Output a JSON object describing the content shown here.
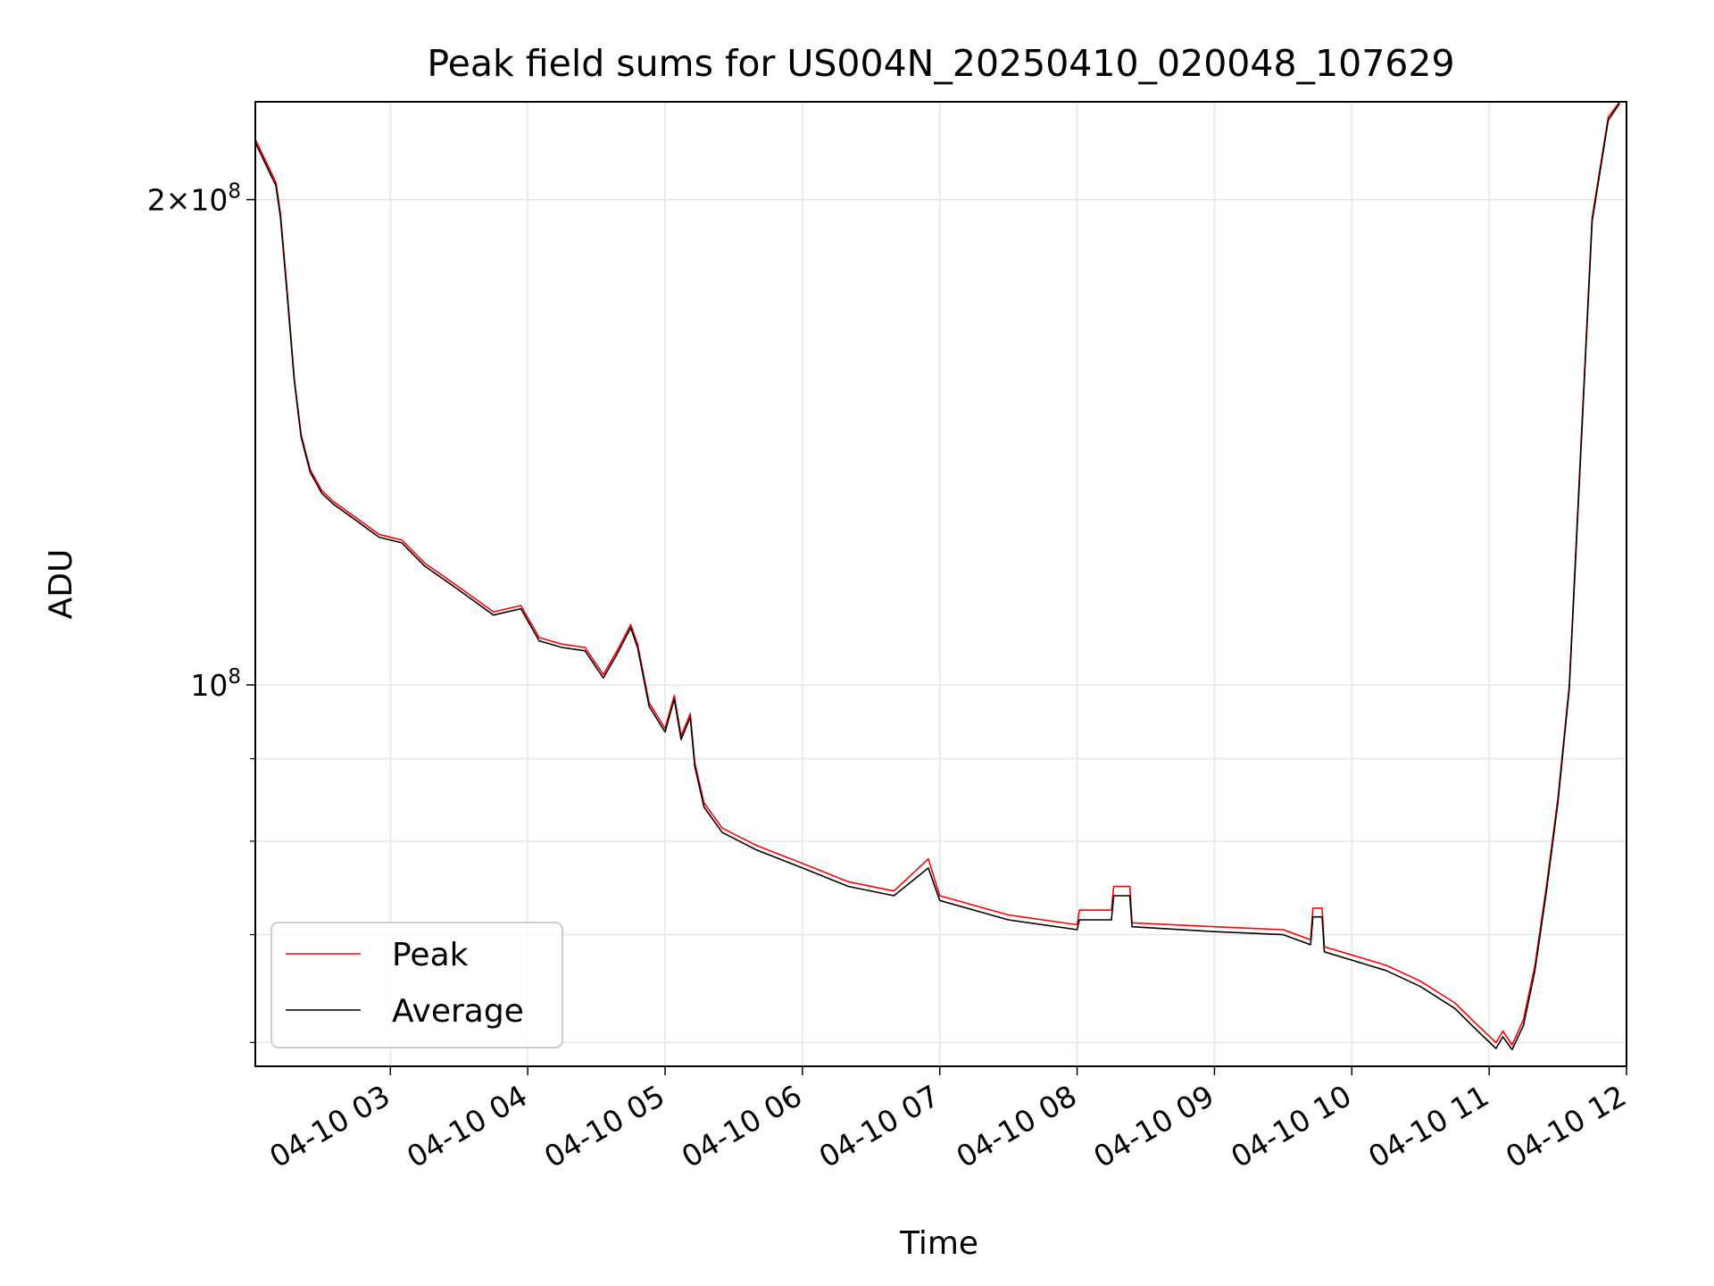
{
  "chart_data": {
    "type": "line",
    "title": "Peak field sums for US004N_20250410_020048_107629",
    "xlabel": "Time",
    "ylabel": "ADU",
    "y_scale": "log",
    "grid": true,
    "legend_position": "lower-left",
    "xlim": [
      "2025-04-10T02:01",
      "2025-04-10T12:00"
    ],
    "ylim": [
      58000000,
      230000000
    ],
    "x_ticks": [
      "04-10 03",
      "04-10 04",
      "04-10 05",
      "04-10 06",
      "04-10 07",
      "04-10 08",
      "04-10 09",
      "04-10 10",
      "04-10 11",
      "04-10 12"
    ],
    "x_tick_times": [
      "2025-04-10T03:00",
      "2025-04-10T04:00",
      "2025-04-10T05:00",
      "2025-04-10T06:00",
      "2025-04-10T07:00",
      "2025-04-10T08:00",
      "2025-04-10T09:00",
      "2025-04-10T10:00",
      "2025-04-10T11:00",
      "2025-04-10T12:00"
    ],
    "y_major_ticks": [
      {
        "value": 200000000,
        "mantissa": "2",
        "exp": "8"
      },
      {
        "value": 100000000,
        "mantissa": "",
        "exp": "8"
      }
    ],
    "y_minor_ticks": [
      60000000,
      70000000,
      80000000,
      90000000
    ],
    "series": [
      {
        "name": "Peak",
        "color": "#ff0000",
        "x": [
          "2025-04-10T02:01",
          "2025-04-10T02:10",
          "2025-04-10T02:12",
          "2025-04-10T02:15",
          "2025-04-10T02:18",
          "2025-04-10T02:21",
          "2025-04-10T02:25",
          "2025-04-10T02:30",
          "2025-04-10T02:35",
          "2025-04-10T02:45",
          "2025-04-10T02:55",
          "2025-04-10T03:05",
          "2025-04-10T03:15",
          "2025-04-10T03:30",
          "2025-04-10T03:45",
          "2025-04-10T03:57",
          "2025-04-10T04:05",
          "2025-04-10T04:15",
          "2025-04-10T04:25",
          "2025-04-10T04:33",
          "2025-04-10T04:39",
          "2025-04-10T04:45",
          "2025-04-10T04:48",
          "2025-04-10T04:53",
          "2025-04-10T05:00",
          "2025-04-10T05:04",
          "2025-04-10T05:07",
          "2025-04-10T05:11",
          "2025-04-10T05:13",
          "2025-04-10T05:17",
          "2025-04-10T05:25",
          "2025-04-10T05:40",
          "2025-04-10T06:00",
          "2025-04-10T06:20",
          "2025-04-10T06:40",
          "2025-04-10T06:55",
          "2025-04-10T07:00",
          "2025-04-10T07:30",
          "2025-04-10T08:00",
          "2025-04-10T08:01",
          "2025-04-10T08:15",
          "2025-04-10T08:16",
          "2025-04-10T08:23",
          "2025-04-10T08:24",
          "2025-04-10T09:00",
          "2025-04-10T09:30",
          "2025-04-10T09:42",
          "2025-04-10T09:43",
          "2025-04-10T09:47",
          "2025-04-10T09:48",
          "2025-04-10T10:00",
          "2025-04-10T10:15",
          "2025-04-10T10:30",
          "2025-04-10T10:45",
          "2025-04-10T10:55",
          "2025-04-10T11:03",
          "2025-04-10T11:06",
          "2025-04-10T11:10",
          "2025-04-10T11:15",
          "2025-04-10T11:20",
          "2025-04-10T11:25",
          "2025-04-10T11:30",
          "2025-04-10T11:35",
          "2025-04-10T11:40",
          "2025-04-10T11:45",
          "2025-04-10T11:52",
          "2025-04-10T11:57"
        ],
        "y": [
          218000000,
          205000000,
          196000000,
          175000000,
          155000000,
          143000000,
          136000000,
          132000000,
          130000000,
          127000000,
          124000000,
          123000000,
          119000000,
          115000000,
          111000000,
          112000000,
          107000000,
          106000000,
          105500000,
          101500000,
          105000000,
          109000000,
          106000000,
          97500000,
          94000000,
          98500000,
          93000000,
          96000000,
          89500000,
          84500000,
          81500000,
          79500000,
          77500000,
          75500000,
          74500000,
          78000000,
          74000000,
          72000000,
          71000000,
          72500000,
          72500000,
          75000000,
          75000000,
          71200000,
          70800000,
          70500000,
          69500000,
          72700000,
          72700000,
          68800000,
          68000000,
          67000000,
          65500000,
          63500000,
          61500000,
          60000000,
          61000000,
          59800000,
          62000000,
          67000000,
          75000000,
          85000000,
          100000000,
          140000000,
          195000000,
          225000000,
          230000000
        ]
      },
      {
        "name": "Average",
        "color": "#000000",
        "x": [
          "2025-04-10T02:01",
          "2025-04-10T02:10",
          "2025-04-10T02:12",
          "2025-04-10T02:15",
          "2025-04-10T02:18",
          "2025-04-10T02:21",
          "2025-04-10T02:25",
          "2025-04-10T02:30",
          "2025-04-10T02:35",
          "2025-04-10T02:45",
          "2025-04-10T02:55",
          "2025-04-10T03:05",
          "2025-04-10T03:15",
          "2025-04-10T03:30",
          "2025-04-10T03:45",
          "2025-04-10T03:57",
          "2025-04-10T04:05",
          "2025-04-10T04:15",
          "2025-04-10T04:25",
          "2025-04-10T04:33",
          "2025-04-10T04:39",
          "2025-04-10T04:45",
          "2025-04-10T04:48",
          "2025-04-10T04:53",
          "2025-04-10T05:00",
          "2025-04-10T05:04",
          "2025-04-10T05:07",
          "2025-04-10T05:11",
          "2025-04-10T05:13",
          "2025-04-10T05:17",
          "2025-04-10T05:25",
          "2025-04-10T05:40",
          "2025-04-10T06:00",
          "2025-04-10T06:20",
          "2025-04-10T06:40",
          "2025-04-10T06:55",
          "2025-04-10T07:00",
          "2025-04-10T07:30",
          "2025-04-10T08:00",
          "2025-04-10T08:01",
          "2025-04-10T08:15",
          "2025-04-10T08:16",
          "2025-04-10T08:23",
          "2025-04-10T08:24",
          "2025-04-10T09:00",
          "2025-04-10T09:30",
          "2025-04-10T09:42",
          "2025-04-10T09:43",
          "2025-04-10T09:47",
          "2025-04-10T09:48",
          "2025-04-10T10:00",
          "2025-04-10T10:15",
          "2025-04-10T10:30",
          "2025-04-10T10:45",
          "2025-04-10T10:55",
          "2025-04-10T11:03",
          "2025-04-10T11:06",
          "2025-04-10T11:10",
          "2025-04-10T11:15",
          "2025-04-10T11:20",
          "2025-04-10T11:25",
          "2025-04-10T11:30",
          "2025-04-10T11:35",
          "2025-04-10T11:40",
          "2025-04-10T11:45",
          "2025-04-10T11:52",
          "2025-04-10T11:57"
        ],
        "y": [
          217000000,
          204000000,
          195000000,
          174000000,
          154500000,
          142500000,
          135500000,
          131500000,
          129500000,
          126500000,
          123500000,
          122500000,
          118500000,
          114500000,
          110500000,
          111500000,
          106500000,
          105500000,
          105000000,
          101000000,
          104500000,
          108500000,
          105500000,
          97000000,
          93500000,
          98000000,
          92500000,
          95500000,
          89000000,
          84000000,
          81000000,
          79000000,
          77000000,
          75000000,
          74000000,
          77000000,
          73500000,
          71500000,
          70500000,
          71500000,
          71500000,
          74000000,
          74000000,
          70800000,
          70300000,
          70000000,
          69000000,
          71800000,
          71800000,
          68300000,
          67500000,
          66500000,
          65000000,
          63000000,
          61000000,
          59500000,
          60500000,
          59400000,
          61500000,
          66500000,
          74500000,
          84500000,
          99500000,
          139000000,
          194000000,
          224000000,
          229500000
        ]
      }
    ]
  }
}
